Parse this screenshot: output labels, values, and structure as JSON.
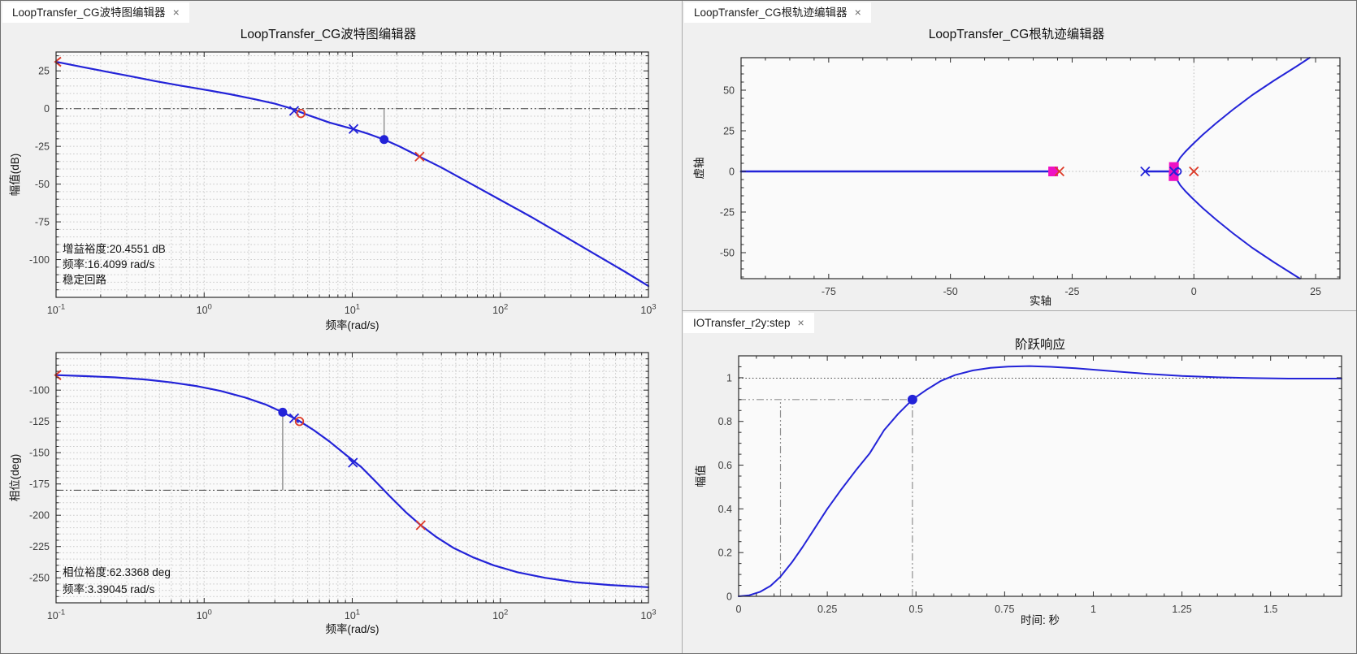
{
  "window": {
    "close_glyph": "×"
  },
  "colors": {
    "blue": "#2323d8",
    "red": "#dd3a28",
    "magenta": "#ee12c4",
    "grid": "#c9c9c9",
    "refline": "#3d3d3d",
    "gray_line": "#9a9a9a",
    "plot_bg": "#fafafa",
    "axis": "#2b2b2b",
    "tick_text": "#3d3d3d"
  },
  "panels": {
    "bode": {
      "tab": "LoopTransfer_CG波特图编辑器",
      "title": "LoopTransfer_CG波特图编辑器"
    },
    "rlocus": {
      "tab": "LoopTransfer_CG根轨迹编辑器",
      "title": "LoopTransfer_CG根轨迹编辑器"
    },
    "step": {
      "tab": "IOTransfer_r2y:step",
      "title": "阶跃响应"
    }
  },
  "annotations": {
    "gain_margin": [
      "增益裕度:20.4551 dB",
      "频率:16.4099 rad/s",
      "稳定回路"
    ],
    "phase_margin": [
      "相位裕度:62.3368 deg",
      "频率:3.39045 rad/s"
    ]
  },
  "chart_data": [
    {
      "id": "bode-magnitude-plot",
      "type": "line",
      "xscale": "log",
      "title": "LoopTransfer_CG波特图编辑器",
      "xlabel": "频率(rad/s)",
      "ylabel": "幅值(dB)",
      "xlim": [
        0.1,
        1000
      ],
      "ylim": [
        -125,
        37.5
      ],
      "box": {
        "l": 68,
        "t": 63,
        "r": 797,
        "b": 365
      },
      "xticks": [
        {
          "v": 0.1,
          "sup": "-1"
        },
        {
          "v": 1,
          "sup": "0"
        },
        {
          "v": 10,
          "sup": "1"
        },
        {
          "v": 100,
          "sup": "2"
        },
        {
          "v": 1000,
          "sup": "3"
        }
      ],
      "yticks": [
        25,
        0,
        -25,
        -50,
        -75,
        -100
      ],
      "xminor": "log",
      "yminor": 5,
      "grid": "full",
      "ygrid_step": 5,
      "xlabel_dy": 39,
      "ylabel_x": 22,
      "reflines": [
        {
          "dir": "h",
          "at": 0,
          "dash": "dashdotdot",
          "color": "refline",
          "w": 1
        },
        {
          "dir": "v",
          "at": 16.41,
          "from": -20.46,
          "to": 0,
          "dash": "solid",
          "color": "gray_line",
          "w": 1.6
        }
      ],
      "series": [
        {
          "name": "open-loop-magnitude",
          "color": "blue",
          "w": 2.2,
          "points": [
            [
              0.1,
              31
            ],
            [
              0.15,
              27.6
            ],
            [
              0.22,
              24.4
            ],
            [
              0.32,
              21.4
            ],
            [
              0.47,
              18.2
            ],
            [
              0.7,
              15.1
            ],
            [
              1,
              12.6
            ],
            [
              1.5,
              9.5
            ],
            [
              2.2,
              6.2
            ],
            [
              3,
              3.3
            ],
            [
              3.9,
              0
            ],
            [
              5,
              -4.2
            ],
            [
              7,
              -9.2
            ],
            [
              10,
              -13.4
            ],
            [
              13,
              -16.9
            ],
            [
              16.41,
              -20.5
            ],
            [
              21,
              -25.2
            ],
            [
              28.5,
              -31.8
            ],
            [
              40,
              -39
            ],
            [
              60,
              -48.5
            ],
            [
              100,
              -60.5
            ],
            [
              160,
              -71.5
            ],
            [
              260,
              -83.5
            ],
            [
              420,
              -95.5
            ],
            [
              680,
              -107.5
            ],
            [
              1000,
              -117.5
            ]
          ]
        }
      ],
      "markers": [
        {
          "t": "lt",
          "x": 0.1,
          "y": 31,
          "c": "red"
        },
        {
          "t": "x",
          "x": 4.05,
          "y": -1.5,
          "c": "blue"
        },
        {
          "t": "o",
          "x": 4.5,
          "y": -3.2,
          "c": "red"
        },
        {
          "t": "x",
          "x": 10.2,
          "y": -13.5,
          "c": "blue"
        },
        {
          "t": "dot",
          "x": 16.41,
          "y": -20.46,
          "c": "blue",
          "r": 5.5
        },
        {
          "t": "x",
          "x": 28.5,
          "y": -31.8,
          "c": "red"
        }
      ]
    },
    {
      "id": "bode-phase-plot",
      "type": "line",
      "xscale": "log",
      "xlabel": "频率(rad/s)",
      "ylabel": "相位(deg)",
      "xlim": [
        0.1,
        1000
      ],
      "ylim": [
        -270,
        -70
      ],
      "box": {
        "l": 68,
        "t": 433,
        "r": 797,
        "b": 741
      },
      "xticks": [
        {
          "v": 0.1,
          "sup": "-1"
        },
        {
          "v": 1,
          "sup": "0"
        },
        {
          "v": 10,
          "sup": "1"
        },
        {
          "v": 100,
          "sup": "2"
        },
        {
          "v": 1000,
          "sup": "3"
        }
      ],
      "yticks": [
        -100,
        -125,
        -150,
        -175,
        -200,
        -225,
        -250
      ],
      "xminor": "log",
      "yminor": 5,
      "grid": "full",
      "ygrid_step": 5,
      "xlabel_dy": 37,
      "ylabel_x": 22,
      "reflines": [
        {
          "dir": "h",
          "at": -180,
          "dash": "dashdotdot",
          "color": "refline",
          "w": 1
        },
        {
          "dir": "v",
          "at": 3.39,
          "from": -180,
          "to": -117.66,
          "dash": "solid",
          "color": "gray_line",
          "w": 1.6
        }
      ],
      "series": [
        {
          "name": "open-loop-phase",
          "color": "blue",
          "w": 2.2,
          "points": [
            [
              0.1,
              -88
            ],
            [
              0.16,
              -88.8
            ],
            [
              0.25,
              -89.8
            ],
            [
              0.4,
              -91.5
            ],
            [
              0.6,
              -93.8
            ],
            [
              0.9,
              -96.9
            ],
            [
              1.3,
              -100.7
            ],
            [
              1.9,
              -106
            ],
            [
              2.6,
              -111.5
            ],
            [
              3.39,
              -117.7
            ],
            [
              4.3,
              -124
            ],
            [
              5.5,
              -132
            ],
            [
              7,
              -141
            ],
            [
              9,
              -151.5
            ],
            [
              11.5,
              -161.5
            ],
            [
              14.5,
              -173.5
            ],
            [
              18,
              -185
            ],
            [
              23,
              -197.5
            ],
            [
              29,
              -208
            ],
            [
              37,
              -217.5
            ],
            [
              48,
              -226
            ],
            [
              65,
              -233.5
            ],
            [
              90,
              -240
            ],
            [
              130,
              -245.5
            ],
            [
              200,
              -250
            ],
            [
              320,
              -253.5
            ],
            [
              550,
              -255.8
            ],
            [
              1000,
              -257.5
            ]
          ]
        }
      ],
      "markers": [
        {
          "t": "lt",
          "x": 0.1,
          "y": -88,
          "c": "red"
        },
        {
          "t": "dot",
          "x": 3.39,
          "y": -117.66,
          "c": "blue",
          "r": 5.5
        },
        {
          "t": "x",
          "x": 4.05,
          "y": -122.5,
          "c": "blue"
        },
        {
          "t": "o",
          "x": 4.4,
          "y": -125,
          "c": "red"
        },
        {
          "t": "x",
          "x": 10.1,
          "y": -158,
          "c": "blue"
        },
        {
          "t": "x",
          "x": 29,
          "y": -208,
          "c": "red"
        }
      ]
    },
    {
      "id": "root-locus-plot",
      "type": "line",
      "xscale": "linear",
      "title": "LoopTransfer_CG根轨迹编辑器",
      "xlabel": "实轴",
      "ylabel": "虚轴",
      "xlim": [
        -93,
        30
      ],
      "ylim": [
        -66,
        70
      ],
      "box": {
        "l": 911,
        "t": 70,
        "r": 1648,
        "b": 342
      },
      "xticks": [
        -75,
        -50,
        -25,
        0,
        25
      ],
      "yticks": [
        50,
        25,
        0,
        -25,
        -50
      ],
      "xminor": 5,
      "yminor": 5,
      "grid": "none",
      "xlabel_dy": 32,
      "ylabel_x": 864,
      "reflines": [
        {
          "dir": "v",
          "at": 0,
          "dash": "dot",
          "color": "#bdbdbd",
          "w": 1
        },
        {
          "dir": "h",
          "at": 0,
          "dash": "dot",
          "color": "#bdbdbd",
          "w": 1
        }
      ],
      "series": [
        {
          "name": "locus-real-axis-left",
          "color": "blue",
          "w": 2.6,
          "points": [
            [
              -93,
              0
            ],
            [
              -27.6,
              0
            ]
          ]
        },
        {
          "name": "locus-real-axis-mid",
          "color": "blue",
          "w": 2.6,
          "points": [
            [
              -10,
              0
            ],
            [
              -3.3,
              0
            ]
          ]
        },
        {
          "name": "locus-branch-upper",
          "color": "blue",
          "w": 2,
          "points": [
            [
              -3.7,
              2.5
            ],
            [
              -3.4,
              5.5
            ],
            [
              -2.8,
              8.5
            ],
            [
              -1.8,
              12
            ],
            [
              -0.3,
              16.5
            ],
            [
              1.8,
              22.5
            ],
            [
              4.5,
              29.5
            ],
            [
              8,
              38
            ],
            [
              12,
              47
            ],
            [
              16.5,
              56
            ],
            [
              21,
              64.5
            ],
            [
              23.8,
              70
            ]
          ]
        },
        {
          "name": "locus-branch-lower",
          "color": "blue",
          "w": 2,
          "points": [
            [
              -3.7,
              -2.5
            ],
            [
              -3.4,
              -5.5
            ],
            [
              -2.8,
              -8.5
            ],
            [
              -1.8,
              -12
            ],
            [
              -0.3,
              -16.5
            ],
            [
              1.8,
              -22.5
            ],
            [
              4.5,
              -29.5
            ],
            [
              8,
              -38
            ],
            [
              12,
              -47
            ],
            [
              16.5,
              -56
            ],
            [
              21,
              -64.5
            ],
            [
              21.8,
              -66
            ]
          ]
        }
      ],
      "markers": [
        {
          "t": "sq",
          "x": -28.9,
          "y": 0,
          "c": "magenta"
        },
        {
          "t": "x",
          "x": -27.6,
          "y": 0,
          "c": "red"
        },
        {
          "t": "x",
          "x": -10,
          "y": 0,
          "c": "blue"
        },
        {
          "t": "sq",
          "x": -4.1,
          "y": 2.7,
          "c": "magenta"
        },
        {
          "t": "sq",
          "x": -4.15,
          "y": -2.9,
          "c": "magenta"
        },
        {
          "t": "x",
          "x": -4.05,
          "y": 0,
          "c": "blue"
        },
        {
          "t": "o",
          "x": -3.3,
          "y": 0,
          "c": "blue",
          "r": 4
        },
        {
          "t": "x",
          "x": 0,
          "y": 0,
          "c": "red"
        }
      ]
    },
    {
      "id": "step-response-plot",
      "type": "line",
      "xscale": "linear",
      "title": "阶跃响应",
      "xlabel": "时间: 秒",
      "ylabel": "幅值",
      "xlim": [
        0,
        1.7
      ],
      "ylim": [
        0,
        1.1
      ],
      "box": {
        "l": 908,
        "t": 437,
        "r": 1650,
        "b": 733
      },
      "xticks": [
        0,
        0.25,
        0.5,
        0.75,
        1,
        1.25,
        1.5
      ],
      "yticks": [
        0,
        0.2,
        0.4,
        0.6,
        0.8,
        1
      ],
      "xminor": 0.05,
      "yminor": 0.05,
      "grid": "none",
      "xlabel_dy": 34,
      "ylabel_x": 866,
      "reflines": [
        {
          "dir": "h",
          "at": 0.998,
          "dash": "dot",
          "color": "#4a4a4a",
          "w": 1
        },
        {
          "dir": "v",
          "at": 0.118,
          "from": 0,
          "to": 0.9,
          "dash": "dashdotdot",
          "color": "#8f8f8f",
          "w": 1.2
        },
        {
          "dir": "v",
          "at": 0.49,
          "from": 0,
          "to": 0.9,
          "dash": "dashdotdot",
          "color": "#8f8f8f",
          "w": 1.2
        },
        {
          "dir": "h",
          "at": 0.9,
          "from": 0,
          "to": 0.49,
          "dash": "dashdotdot",
          "color": "#8f8f8f",
          "w": 1.2
        }
      ],
      "series": [
        {
          "name": "step-response",
          "color": "blue",
          "w": 2,
          "points": [
            [
              0,
              0
            ],
            [
              0.03,
              0.005
            ],
            [
              0.06,
              0.02
            ],
            [
              0.09,
              0.048
            ],
            [
              0.118,
              0.09
            ],
            [
              0.15,
              0.155
            ],
            [
              0.18,
              0.225
            ],
            [
              0.21,
              0.3
            ],
            [
              0.25,
              0.4
            ],
            [
              0.29,
              0.49
            ],
            [
              0.33,
              0.575
            ],
            [
              0.37,
              0.655
            ],
            [
              0.41,
              0.76
            ],
            [
              0.45,
              0.835
            ],
            [
              0.49,
              0.9
            ],
            [
              0.53,
              0.945
            ],
            [
              0.57,
              0.985
            ],
            [
              0.61,
              1.012
            ],
            [
              0.66,
              1.033
            ],
            [
              0.71,
              1.045
            ],
            [
              0.76,
              1.051
            ],
            [
              0.82,
              1.053
            ],
            [
              0.88,
              1.05
            ],
            [
              0.95,
              1.043
            ],
            [
              1.05,
              1.03
            ],
            [
              1.15,
              1.018
            ],
            [
              1.25,
              1.008
            ],
            [
              1.35,
              1.002
            ],
            [
              1.45,
              0.998
            ],
            [
              1.55,
              0.996
            ],
            [
              1.7,
              0.996
            ]
          ]
        }
      ],
      "markers": [
        {
          "t": "dot",
          "x": 0.49,
          "y": 0.9,
          "c": "blue",
          "r": 6
        }
      ]
    }
  ]
}
